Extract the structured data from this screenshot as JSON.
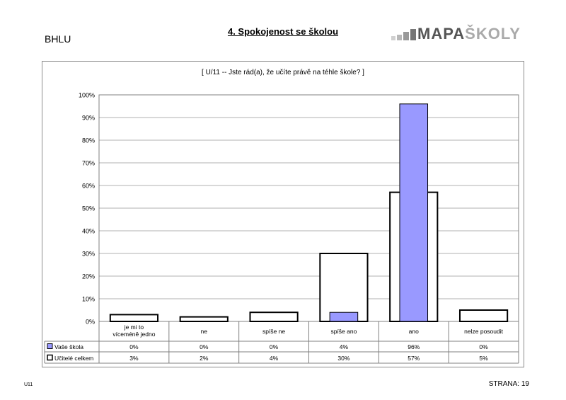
{
  "header": {
    "school_code": "BHLU",
    "section_title": "4. Spokojenost se školou",
    "logo_text_a": "MAPA",
    "logo_text_b": "ŠKOLY"
  },
  "question": "[ U/11 -- Jste rád(a), že učíte právě na téhle škole? ]",
  "footer": {
    "code": "U11",
    "page_label": "STRANA: 19"
  },
  "colors": {
    "vase_skola": "#9999ff",
    "ucitele_celkem": "#ffffff",
    "outline": "#000000"
  },
  "chart_data": {
    "type": "bar",
    "categories": [
      "je mi to víceméně jedno",
      "ne",
      "spíše ne",
      "spíše ano",
      "ano",
      "nelze posoudit"
    ],
    "series": [
      {
        "name": "Vaše škola",
        "values": [
          0,
          0,
          0,
          4,
          96,
          0
        ],
        "labels": [
          "0%",
          "0%",
          "0%",
          "4%",
          "96%",
          "0%"
        ]
      },
      {
        "name": "Učitelé celkem",
        "values": [
          3,
          2,
          4,
          30,
          57,
          5
        ],
        "labels": [
          "3%",
          "2%",
          "4%",
          "30%",
          "57%",
          "5%"
        ]
      }
    ],
    "yticks": [
      "0%",
      "10%",
      "20%",
      "30%",
      "40%",
      "50%",
      "60%",
      "70%",
      "80%",
      "90%",
      "100%"
    ],
    "ylim": [
      0,
      100
    ],
    "grid": true,
    "legend": "data-table"
  }
}
